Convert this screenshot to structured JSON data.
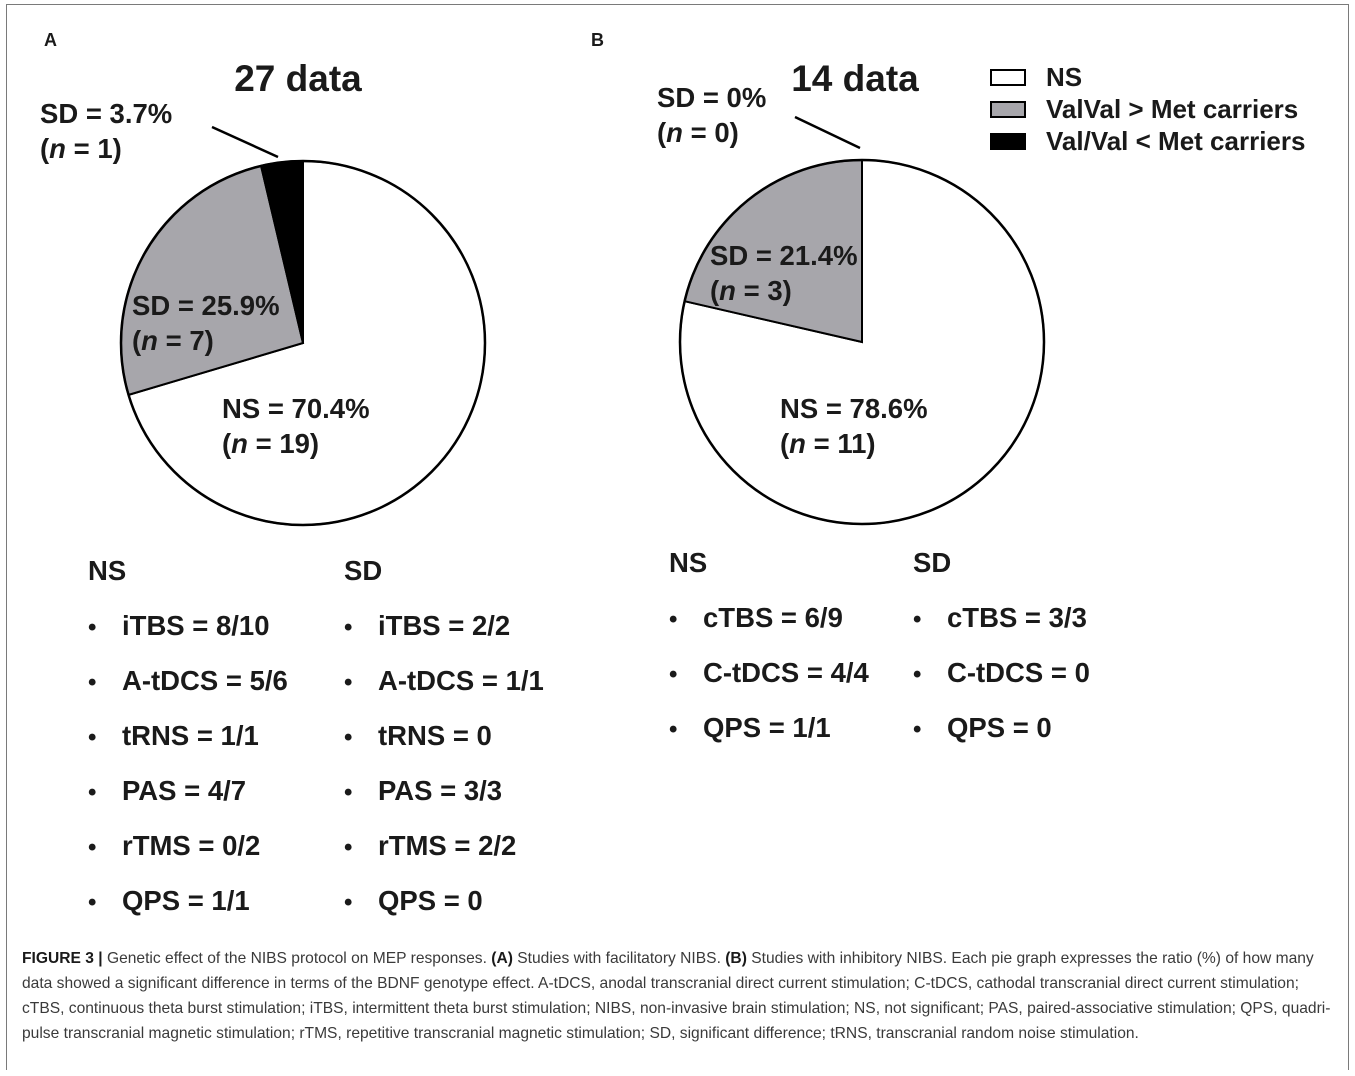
{
  "legend": {
    "items": [
      {
        "label": "NS",
        "color": "#ffffff"
      },
      {
        "label": "ValVal > Met carriers",
        "color": "#a7a6ab"
      },
      {
        "label": "Val/Val < Met carriers",
        "color": "#000000"
      }
    ]
  },
  "chart_data": [
    {
      "type": "pie",
      "panel": "A",
      "title": "27 data",
      "slices": [
        {
          "category": "NS",
          "percent": 70.4,
          "count": 19,
          "label": "NS = 70.4%",
          "n_label": "= 19)",
          "color": "#ffffff"
        },
        {
          "category": "ValVal > Met carriers",
          "percent": 25.9,
          "count": 7,
          "label": "SD = 25.9%",
          "n_label": "= 7)",
          "color": "#a7a6ab"
        },
        {
          "category": "Val/Val < Met carriers",
          "percent": 3.7,
          "count": 1,
          "label": "SD = 3.7%",
          "n_label": "= 1)",
          "color": "#000000"
        }
      ],
      "lists": {
        "ns_title": "NS",
        "sd_title": "SD",
        "ns_items": [
          "iTBS = 8/10",
          "A-tDCS = 5/6",
          "tRNS = 1/1",
          "PAS = 4/7",
          "rTMS = 0/2",
          "QPS = 1/1"
        ],
        "sd_items": [
          "iTBS = 2/2",
          "A-tDCS = 1/1",
          "tRNS = 0",
          "PAS = 3/3",
          "rTMS = 2/2",
          "QPS = 0"
        ]
      }
    },
    {
      "type": "pie",
      "panel": "B",
      "title": "14 data",
      "slices": [
        {
          "category": "NS",
          "percent": 78.6,
          "count": 11,
          "label": "NS = 78.6%",
          "n_label": "= 11)",
          "color": "#ffffff"
        },
        {
          "category": "ValVal > Met carriers",
          "percent": 21.4,
          "count": 3,
          "label": "SD = 21.4%",
          "n_label": "= 3)",
          "color": "#a7a6ab"
        },
        {
          "category": "Val/Val < Met carriers",
          "percent": 0,
          "count": 0,
          "label": "SD = 0%",
          "n_label": "= 0)",
          "color": "#000000"
        }
      ],
      "lists": {
        "ns_title": "NS",
        "sd_title": "SD",
        "ns_items": [
          "cTBS = 6/9",
          "C-tDCS = 4/4",
          "QPS = 1/1"
        ],
        "sd_items": [
          "cTBS = 3/3",
          "C-tDCS = 0",
          "QPS = 0"
        ]
      }
    }
  ],
  "n_symbol": "n",
  "open_paren": "(",
  "bullet": "•",
  "caption": {
    "figure_label": "FIGURE 3 |",
    "intro": " Genetic effect of the NIBS protocol on MEP responses. ",
    "a_label": "(A)",
    "a_text": " Studies with facilitatory NIBS. ",
    "b_label": "(B)",
    "b_text": " Studies with inhibitory NIBS. Each pie graph expresses the ratio (%) of how many data showed a significant difference in terms of the BDNF genotype effect. A-tDCS, anodal transcranial direct current stimulation; C-tDCS, cathodal transcranial direct current stimulation; cTBS, continuous theta burst stimulation; iTBS, intermittent theta burst stimulation; NIBS, non-invasive brain stimulation; NS, not significant; PAS, paired-associative stimulation; QPS, quadri-pulse transcranial magnetic stimulation; rTMS, repetitive transcranial magnetic stimulation; SD, significant difference; tRNS, transcranial random noise stimulation."
  }
}
